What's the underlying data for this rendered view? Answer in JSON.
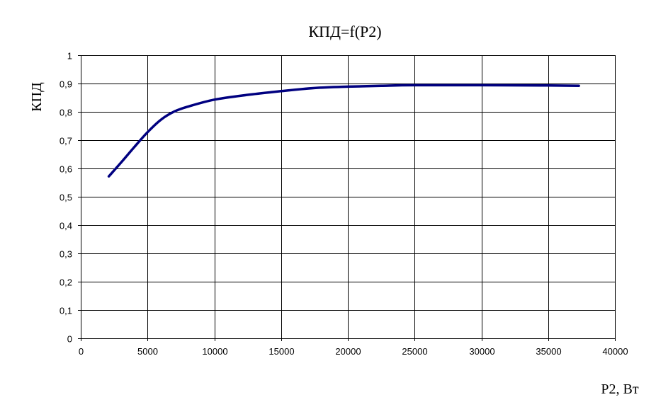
{
  "chart_data": {
    "type": "line",
    "title": "КПД=f(P2)",
    "xlabel": "P2, Вт",
    "ylabel": "КПД",
    "xlim": [
      0,
      40000
    ],
    "ylim": [
      0,
      1
    ],
    "x_ticks": [
      0,
      5000,
      10000,
      15000,
      20000,
      25000,
      30000,
      35000,
      40000
    ],
    "x_tick_labels": [
      "0",
      "5000",
      "10000",
      "15000",
      "20000",
      "25000",
      "30000",
      "35000",
      "40000"
    ],
    "y_ticks": [
      0,
      0.1,
      0.2,
      0.3,
      0.4,
      0.5,
      0.6,
      0.7,
      0.8,
      0.9,
      1
    ],
    "y_tick_labels": [
      "0",
      "0,1",
      "0,2",
      "0,3",
      "0,4",
      "0,5",
      "0,6",
      "0,7",
      "0,8",
      "0,9",
      "1"
    ],
    "grid": true,
    "legend": "none",
    "series": [
      {
        "color": "#000080",
        "x": [
          2100,
          3000,
          4000,
          5000,
          6000,
          7000,
          8000,
          10000,
          12500,
          15000,
          17500,
          20000,
          22500,
          25000,
          30000,
          35000,
          37300
        ],
        "y": [
          0.572,
          0.62,
          0.675,
          0.728,
          0.772,
          0.801,
          0.818,
          0.843,
          0.86,
          0.873,
          0.884,
          0.889,
          0.892,
          0.894,
          0.894,
          0.893,
          0.892
        ]
      }
    ]
  }
}
